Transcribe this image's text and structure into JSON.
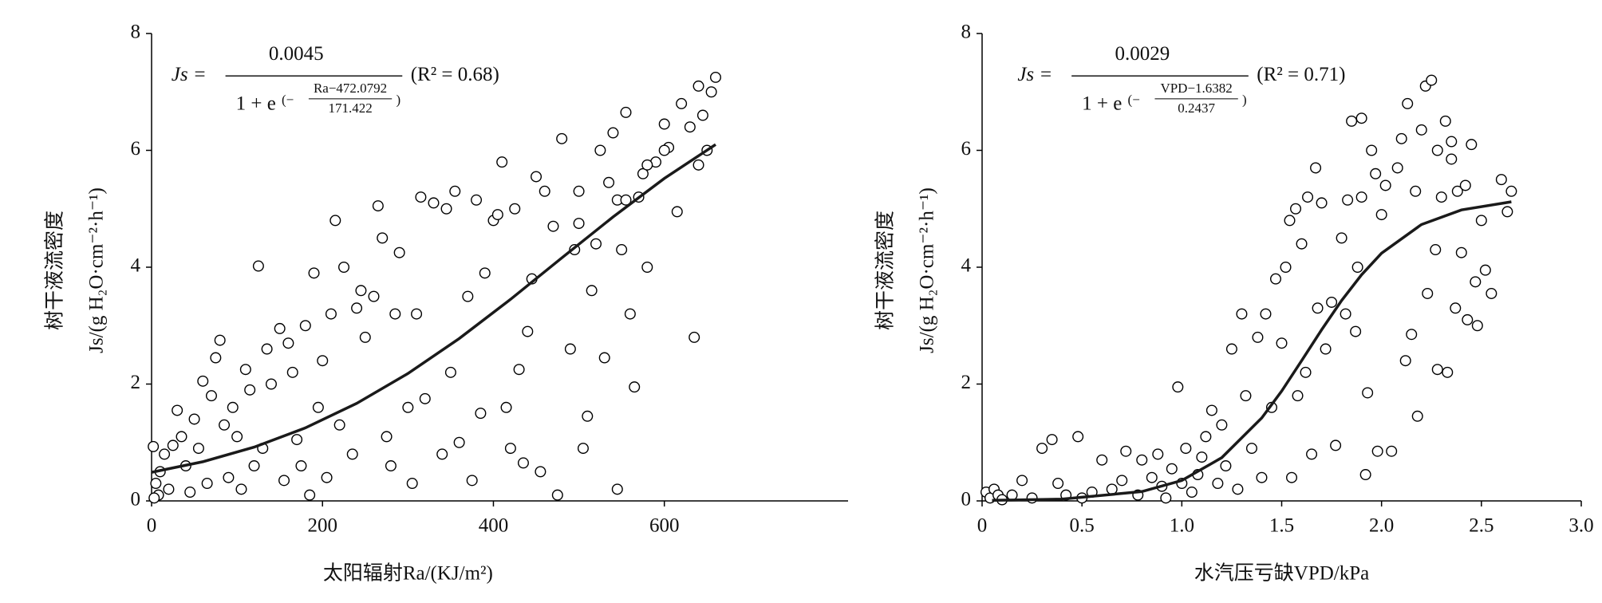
{
  "chart_data": [
    {
      "type": "scatter",
      "equation": {
        "lhs": "Js =",
        "numerator": "0.0045",
        "denominator": "1 + e",
        "exp_open": "(−",
        "exp_numerator": "Ra−472.0792",
        "exp_denominator": "171.422",
        "exp_close": ")",
        "r2": "(R² = 0.68)"
      },
      "ylabel": [
        "树干液流密度",
        "Js/(g  H₂O·cm⁻²·h⁻¹)"
      ],
      "xlabel": "太阳辐射Ra/(KJ/m²)",
      "xlim": [
        0,
        815
      ],
      "ylim": [
        0,
        8
      ],
      "xticks": [
        0,
        200,
        400,
        600
      ],
      "yticks": [
        0,
        2,
        4,
        6,
        8
      ],
      "series": [
        {
          "kind": "points",
          "color": "#000000",
          "x": [
            2,
            5,
            8,
            3,
            10,
            15,
            20,
            25,
            30,
            35,
            40,
            45,
            50,
            55,
            60,
            65,
            70,
            75,
            80,
            85,
            90,
            95,
            100,
            105,
            110,
            115,
            120,
            125,
            130,
            135,
            140,
            150,
            155,
            160,
            165,
            170,
            175,
            180,
            185,
            190,
            195,
            200,
            205,
            210,
            215,
            220,
            225,
            235,
            240,
            245,
            250,
            260,
            265,
            270,
            275,
            280,
            285,
            290,
            300,
            305,
            310,
            315,
            320,
            330,
            340,
            345,
            350,
            355,
            360,
            370,
            375,
            380,
            385,
            390,
            400,
            405,
            410,
            415,
            420,
            425,
            430,
            435,
            440,
            445,
            450,
            455,
            460,
            470,
            475,
            480,
            490,
            495,
            500,
            505,
            510,
            515,
            520,
            525,
            530,
            535,
            540,
            545,
            550,
            555,
            560,
            565,
            570,
            575,
            580,
            590,
            600,
            605,
            615,
            620,
            630,
            635,
            640,
            645,
            650,
            655,
            660,
            640,
            580,
            600,
            545,
            555,
            500
          ],
          "values": [
            0.93,
            0.3,
            0.1,
            0.05,
            0.5,
            0.8,
            0.2,
            0.95,
            1.55,
            1.1,
            0.6,
            0.15,
            1.4,
            0.9,
            2.05,
            0.3,
            1.8,
            2.45,
            2.75,
            1.3,
            0.4,
            1.6,
            1.1,
            0.2,
            2.25,
            1.9,
            0.6,
            4.02,
            0.9,
            2.6,
            2.0,
            2.95,
            0.35,
            2.7,
            2.2,
            1.05,
            0.6,
            3.0,
            0.1,
            3.9,
            1.6,
            2.4,
            0.4,
            3.2,
            4.8,
            1.3,
            4.0,
            0.8,
            3.3,
            3.6,
            2.8,
            3.5,
            5.05,
            4.5,
            1.1,
            0.6,
            3.2,
            4.25,
            1.6,
            0.3,
            3.2,
            5.2,
            1.75,
            5.1,
            0.8,
            5.0,
            2.2,
            5.3,
            1.0,
            3.5,
            0.35,
            5.15,
            1.5,
            3.9,
            4.8,
            4.9,
            5.8,
            1.6,
            0.9,
            5.0,
            2.25,
            0.65,
            2.9,
            3.8,
            5.55,
            0.5,
            5.3,
            4.7,
            0.1,
            6.2,
            2.6,
            4.3,
            5.3,
            0.9,
            1.45,
            3.6,
            4.4,
            6.0,
            2.45,
            5.45,
            6.3,
            0.2,
            4.3,
            6.65,
            3.2,
            1.95,
            5.2,
            5.6,
            4.0,
            5.8,
            6.45,
            6.05,
            4.95,
            6.8,
            6.4,
            2.8,
            7.1,
            6.6,
            6.0,
            7.0,
            7.25,
            5.75,
            5.75,
            6.0,
            5.15,
            5.15,
            4.75
          ]
        },
        {
          "kind": "fit",
          "color": "#1a1a1a",
          "x": [
            0,
            60,
            120,
            180,
            240,
            300,
            360,
            420,
            480,
            540,
            600,
            660
          ],
          "values": [
            0.49,
            0.67,
            0.92,
            1.25,
            1.67,
            2.18,
            2.78,
            3.45,
            4.16,
            4.86,
            5.52,
            6.1
          ]
        }
      ]
    },
    {
      "type": "scatter",
      "equation": {
        "lhs": "Js =",
        "numerator": "0.0029",
        "denominator": "1 + e",
        "exp_open": "(−",
        "exp_numerator": "VPD−1.6382",
        "exp_denominator": "0.2437",
        "exp_close": ")",
        "r2": "(R² = 0.71)"
      },
      "ylabel": [
        "树干液流密度",
        "Js/(g  H₂O·cm⁻²·h⁻¹)"
      ],
      "xlabel": "水汽压亏缺VPD/kPa",
      "xlim": [
        0,
        3
      ],
      "ylim": [
        0,
        8
      ],
      "xticks": [
        0,
        0.5,
        {
          "value": 1,
          "label": "1.0"
        },
        1.5,
        {
          "value": 2,
          "label": "2.0"
        },
        2.5,
        {
          "value": 3,
          "label": "3.0"
        }
      ],
      "yticks": [
        0,
        2,
        4,
        6,
        8
      ],
      "series": [
        {
          "kind": "points",
          "color": "#000000",
          "x": [
            0.02,
            0.04,
            0.06,
            0.08,
            0.1,
            0.15,
            0.2,
            0.25,
            0.3,
            0.35,
            0.38,
            0.42,
            0.48,
            0.5,
            0.55,
            0.6,
            0.65,
            0.7,
            0.72,
            0.78,
            0.8,
            0.85,
            0.88,
            0.9,
            0.92,
            0.95,
            0.98,
            1.0,
            1.02,
            1.05,
            1.08,
            1.1,
            1.12,
            1.15,
            1.18,
            1.2,
            1.22,
            1.25,
            1.28,
            1.3,
            1.32,
            1.35,
            1.38,
            1.4,
            1.42,
            1.45,
            1.47,
            1.5,
            1.52,
            1.54,
            1.55,
            1.57,
            1.58,
            1.6,
            1.62,
            1.63,
            1.65,
            1.67,
            1.68,
            1.7,
            1.72,
            1.75,
            1.77,
            1.8,
            1.82,
            1.83,
            1.85,
            1.87,
            1.88,
            1.9,
            1.92,
            1.93,
            1.95,
            1.97,
            1.98,
            2.0,
            2.02,
            2.05,
            2.08,
            2.1,
            2.12,
            2.13,
            2.15,
            2.17,
            2.18,
            2.2,
            2.22,
            2.23,
            2.25,
            2.27,
            2.28,
            2.3,
            2.32,
            2.33,
            2.35,
            2.37,
            2.38,
            2.4,
            2.42,
            2.43,
            2.45,
            2.47,
            2.48,
            2.5,
            2.52,
            2.55,
            2.6,
            2.63,
            2.65,
            2.28,
            2.35,
            1.9
          ],
          "values": [
            0.15,
            0.05,
            0.2,
            0.1,
            0.02,
            0.1,
            0.35,
            0.05,
            0.9,
            1.05,
            0.3,
            0.1,
            1.1,
            0.05,
            0.15,
            0.7,
            0.2,
            0.35,
            0.85,
            0.1,
            0.7,
            0.4,
            0.8,
            0.25,
            0.05,
            0.55,
            1.95,
            0.3,
            0.9,
            0.15,
            0.45,
            0.75,
            1.1,
            1.55,
            0.3,
            1.3,
            0.6,
            2.6,
            0.2,
            3.2,
            1.8,
            0.9,
            2.8,
            0.4,
            3.2,
            1.6,
            3.8,
            2.7,
            4.0,
            4.8,
            0.4,
            5.0,
            1.8,
            4.4,
            2.2,
            5.2,
            0.8,
            5.7,
            3.3,
            5.1,
            2.6,
            3.4,
            0.95,
            4.5,
            3.2,
            5.15,
            6.5,
            2.9,
            4.0,
            6.55,
            0.45,
            1.85,
            6.0,
            5.6,
            0.85,
            4.9,
            5.4,
            0.85,
            5.7,
            6.2,
            2.4,
            6.8,
            2.85,
            5.3,
            1.45,
            6.35,
            7.1,
            3.55,
            7.2,
            4.3,
            2.25,
            5.2,
            6.5,
            2.2,
            6.15,
            3.3,
            5.3,
            4.25,
            5.4,
            3.1,
            6.1,
            3.75,
            3.0,
            4.8,
            3.95,
            3.55,
            5.5,
            4.95,
            5.3,
            6.0,
            5.85,
            5.2
          ]
        },
        {
          "kind": "fit",
          "color": "#1a1a1a",
          "x": [
            0.05,
            0.4,
            0.8,
            1.0,
            1.2,
            1.4,
            1.5,
            1.6,
            1.7,
            1.8,
            1.9,
            2.0,
            2.2,
            2.4,
            2.65
          ],
          "values": [
            0.01,
            0.03,
            0.16,
            0.35,
            0.74,
            1.42,
            1.88,
            2.4,
            2.93,
            3.43,
            3.87,
            4.24,
            4.73,
            4.98,
            5.12
          ]
        }
      ]
    }
  ]
}
